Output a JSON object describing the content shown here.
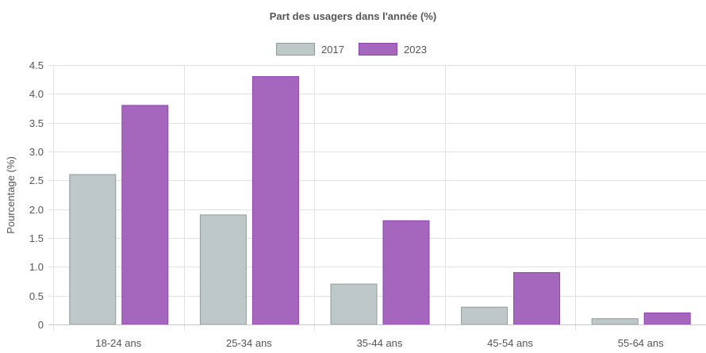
{
  "chart_data": {
    "type": "bar",
    "title": "Part des usagers dans l'année (%)",
    "xlabel": "",
    "ylabel": "Pourcentage (%)",
    "categories": [
      "18-24 ans",
      "25-34 ans",
      "35-44 ans",
      "45-54 ans",
      "55-64 ans"
    ],
    "series": [
      {
        "name": "2017",
        "values": [
          2.6,
          1.9,
          0.7,
          0.3,
          0.1
        ],
        "color": "#bec8c8",
        "border": "#8f9c9c"
      },
      {
        "name": "2023",
        "values": [
          3.8,
          4.3,
          1.8,
          0.9,
          0.2
        ],
        "color": "#a566bd",
        "border": "#8e44ad"
      }
    ],
    "ylim": [
      0,
      4.5
    ],
    "yticks": [
      "0",
      "0.5",
      "1.0",
      "1.5",
      "2.0",
      "2.5",
      "3.0",
      "3.5",
      "4.0",
      "4.5"
    ],
    "grid": true,
    "legend_position": "top"
  }
}
